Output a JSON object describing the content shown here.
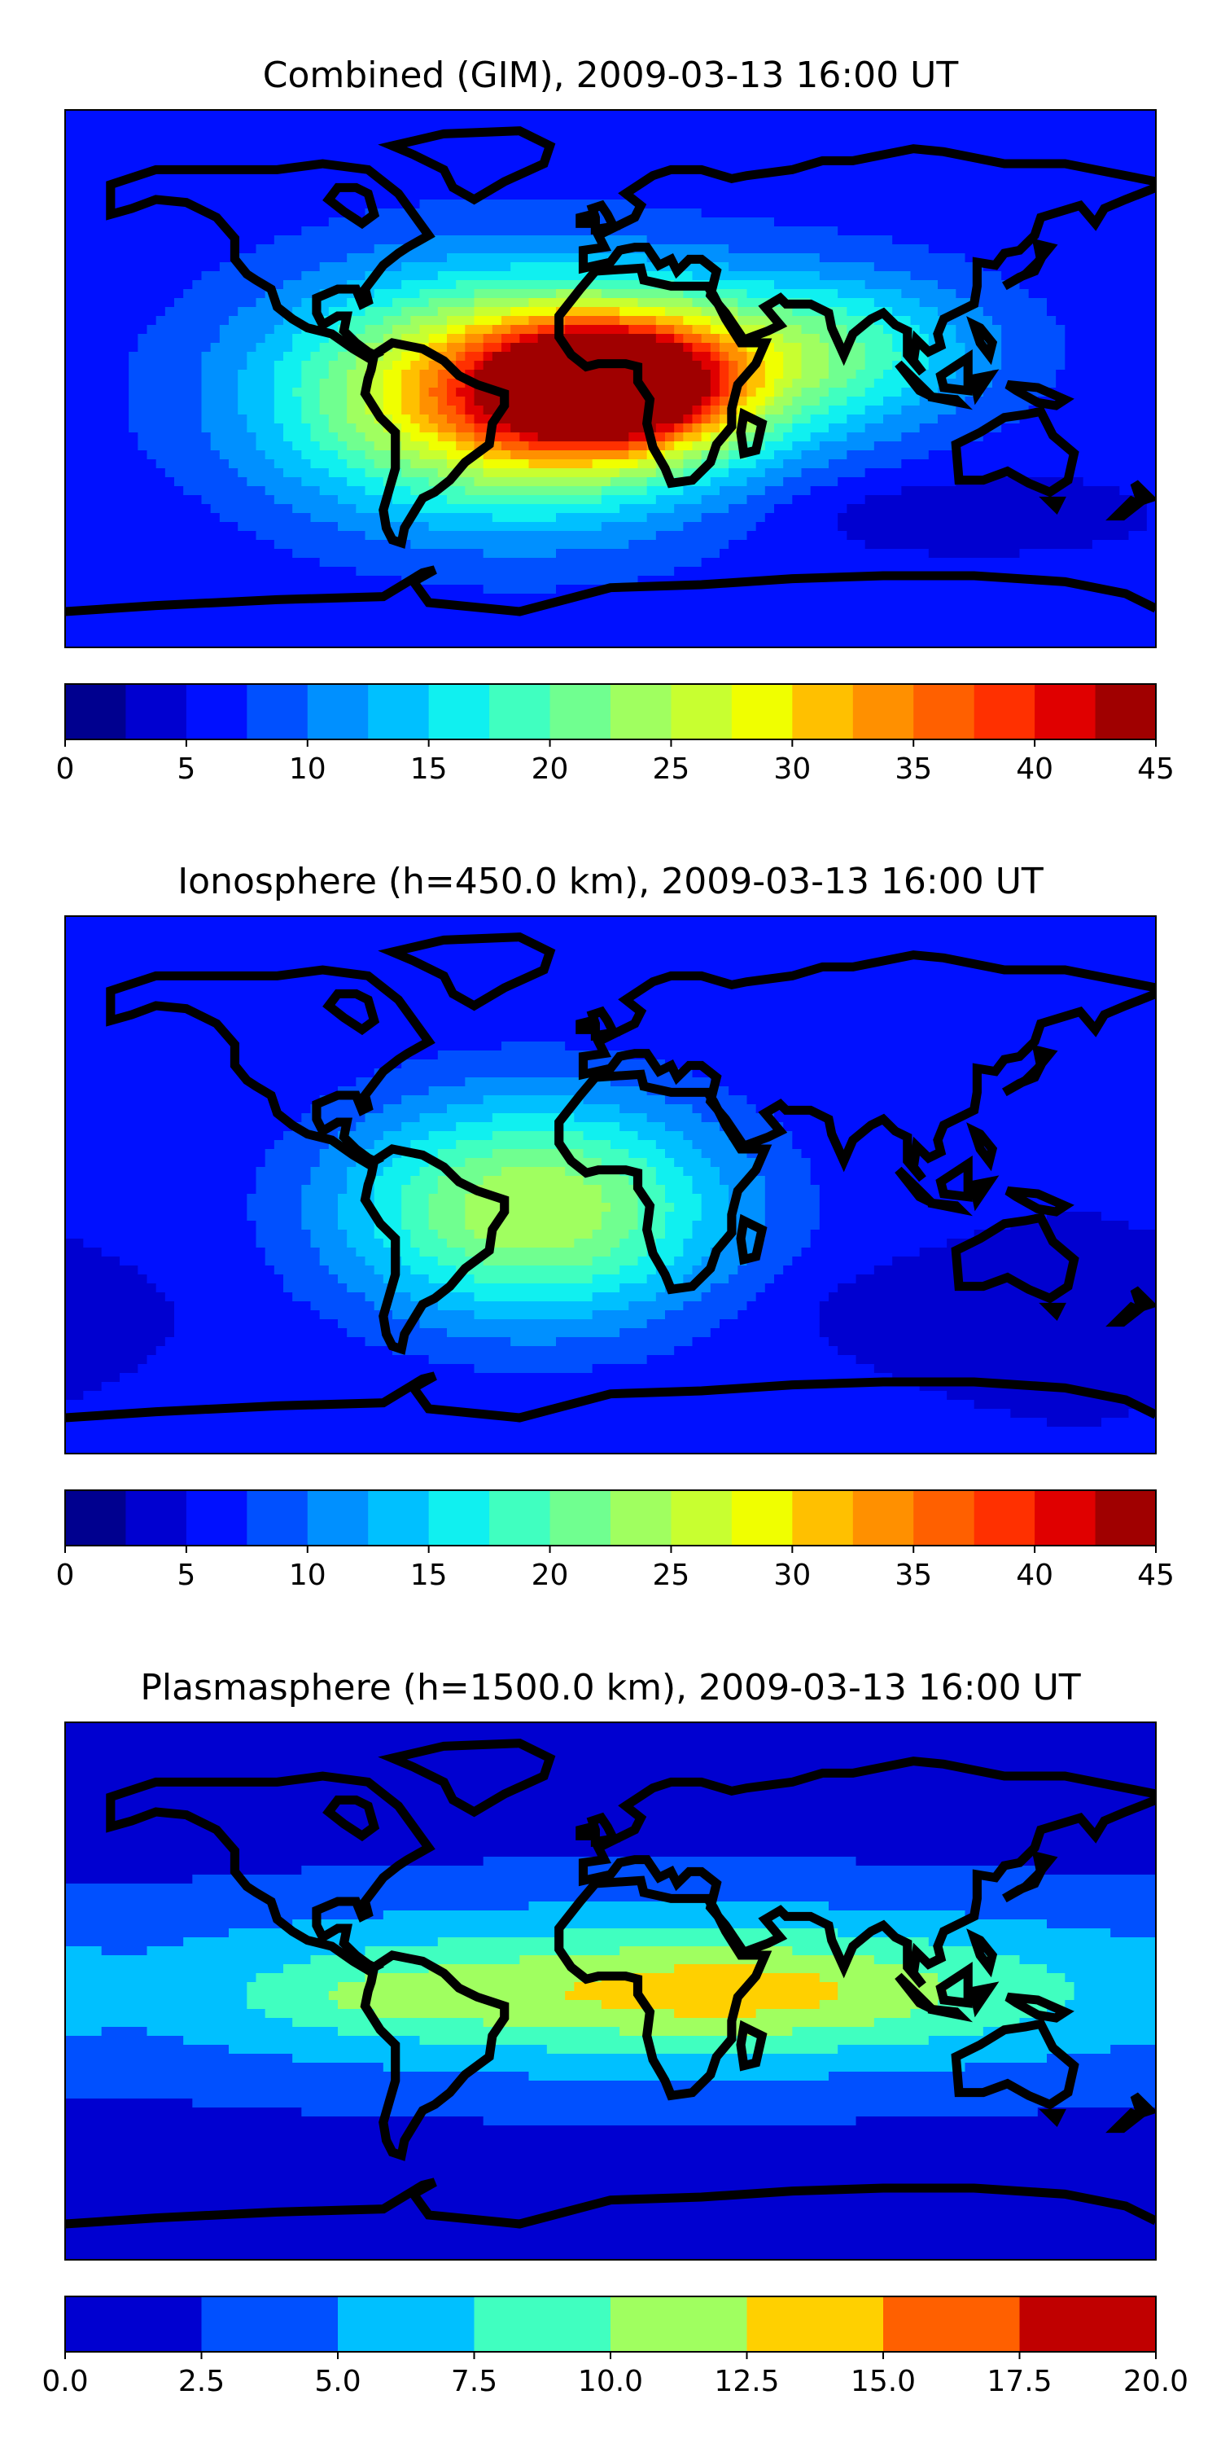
{
  "chart_data": [
    {
      "type": "heatmap",
      "title": "Combined (GIM), 2009-03-13 16:00 UT",
      "colorbar": {
        "levels": [
          0,
          2.5,
          5,
          7.5,
          10,
          12.5,
          15,
          17.5,
          20,
          22.5,
          25,
          27.5,
          30,
          32.5,
          35,
          37.5,
          40,
          42.5,
          45
        ],
        "ticks": [
          "0",
          "5",
          "10",
          "15",
          "20",
          "25",
          "30",
          "35",
          "40",
          "45"
        ],
        "colors": [
          "#00008f",
          "#0000d0",
          "#0010ff",
          "#0050ff",
          "#0090ff",
          "#00c0ff",
          "#10f0f0",
          "#40ffc0",
          "#70ff90",
          "#a0ff60",
          "#c8ff30",
          "#f0ff00",
          "#ffc000",
          "#ff9000",
          "#ff6000",
          "#ff3000",
          "#e00000",
          "#a00000"
        ]
      },
      "field": {
        "background": 6,
        "blobs": [
          {
            "lon": -30,
            "lat": -5,
            "rlon": 75,
            "rlat": 38,
            "peak": 30
          },
          {
            "lon": 0,
            "lat": -2,
            "rlon": 38,
            "rlat": 20,
            "peak": 33
          },
          {
            "lon": 70,
            "lat": 10,
            "rlon": 55,
            "rlat": 25,
            "peak": 12
          },
          {
            "lon": 110,
            "lat": -45,
            "rlon": 70,
            "rlat": 14,
            "peak": -3
          }
        ]
      }
    },
    {
      "type": "heatmap",
      "title": "Ionosphere  (h=450.0 km), 2009-03-13 16:00 UT",
      "colorbar": {
        "levels": [
          0,
          2.5,
          5,
          7.5,
          10,
          12.5,
          15,
          17.5,
          20,
          22.5,
          25,
          27.5,
          30,
          32.5,
          35,
          37.5,
          40,
          42.5,
          45
        ],
        "ticks": [
          "0",
          "5",
          "10",
          "15",
          "20",
          "25",
          "30",
          "35",
          "40",
          "45"
        ],
        "colors": [
          "#00008f",
          "#0000d0",
          "#0010ff",
          "#0050ff",
          "#0090ff",
          "#00c0ff",
          "#10f0f0",
          "#40ffc0",
          "#70ff90",
          "#a0ff60",
          "#c8ff30",
          "#f0ff00",
          "#ffc000",
          "#ff9000",
          "#ff6000",
          "#ff3000",
          "#e00000",
          "#a00000"
        ]
      },
      "field": {
        "background": 5,
        "blobs": [
          {
            "lon": -25,
            "lat": -8,
            "rlon": 65,
            "rlat": 38,
            "peak": 20
          },
          {
            "lon": 120,
            "lat": -40,
            "rlon": 70,
            "rlat": 14,
            "peak": -2
          }
        ]
      }
    },
    {
      "type": "heatmap",
      "title": "Plasmasphere (h=1500.0 km), 2009-03-13 16:00 UT",
      "colorbar": {
        "levels": [
          0.0,
          2.5,
          5.0,
          7.5,
          10.0,
          12.5,
          15.0,
          17.5,
          20.0
        ],
        "ticks": [
          "0.0",
          "2.5",
          "5.0",
          "7.5",
          "10.0",
          "12.5",
          "15.0",
          "17.5",
          "20.0"
        ],
        "colors": [
          "#0000d0",
          "#0050ff",
          "#00c0ff",
          "#40ffc0",
          "#a0ff60",
          "#ffd000",
          "#ff6000",
          "#c00000"
        ]
      },
      "field": {
        "background": 1.5,
        "blobs": [
          {
            "lon": 20,
            "lat": 0,
            "rlon": 200,
            "rlat": 30,
            "peak": 9
          },
          {
            "lon": 40,
            "lat": 0,
            "rlon": 70,
            "rlat": 15,
            "peak": 3.5
          },
          {
            "lon": -70,
            "lat": -2,
            "rlon": 40,
            "rlat": 10,
            "peak": 2.5
          }
        ]
      }
    }
  ]
}
